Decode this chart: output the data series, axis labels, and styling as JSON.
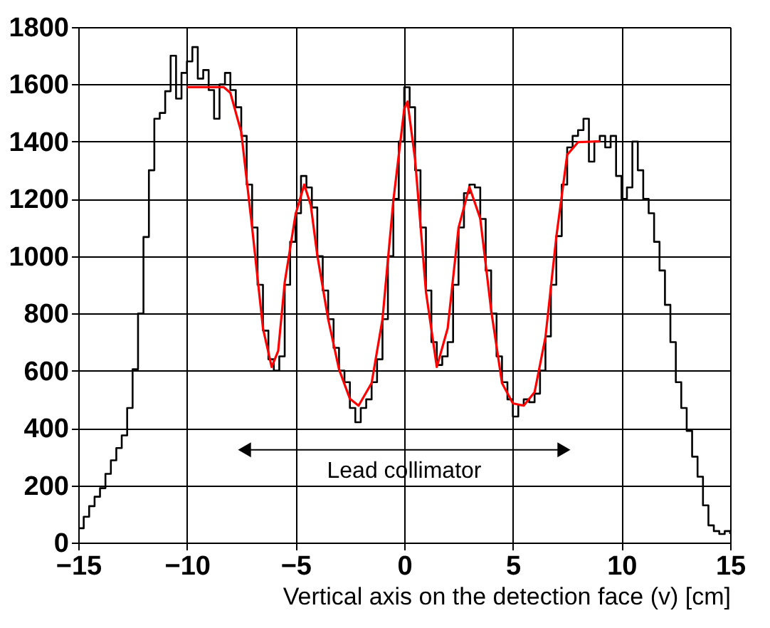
{
  "chart_data": {
    "type": "step",
    "xlabel": "Vertical axis on the detection face (v) [cm]",
    "xlim": [
      -15,
      15
    ],
    "xticks": [
      -15,
      -10,
      -5,
      0,
      5,
      10,
      15
    ],
    "ylim": [
      0,
      1800
    ],
    "yticks": [
      0,
      200,
      400,
      600,
      800,
      1000,
      1200,
      1400,
      1600,
      1800
    ],
    "grid": true,
    "annotations": [
      "Lead collimator"
    ],
    "series": [
      {
        "color": "#000000",
        "x": [
          -15,
          -14.75,
          -14.5,
          -14.25,
          -14,
          -13.75,
          -13.5,
          -13.25,
          -13,
          -12.75,
          -12.5,
          -12.25,
          -12,
          -11.75,
          -11.5,
          -11.25,
          -11,
          -10.75,
          -10.5,
          -10.25,
          -10,
          -9.75,
          -9.5,
          -9.25,
          -9,
          -8.75,
          -8.5,
          -8.25,
          -8,
          -7.75,
          -7.5,
          -7.25,
          -7,
          -6.75,
          -6.5,
          -6.25,
          -6,
          -5.75,
          -5.5,
          -5.25,
          -5,
          -4.75,
          -4.5,
          -4.25,
          -4,
          -3.75,
          -3.5,
          -3.25,
          -3,
          -2.75,
          -2.5,
          -2.25,
          -2,
          -1.75,
          -1.5,
          -1.25,
          -1,
          -0.75,
          -0.5,
          -0.25,
          0,
          0.25,
          0.5,
          0.75,
          1,
          1.25,
          1.5,
          1.75,
          2,
          2.25,
          2.5,
          2.75,
          3,
          3.25,
          3.5,
          3.75,
          4,
          4.25,
          4.5,
          4.75,
          5,
          5.25,
          5.5,
          5.75,
          6,
          6.25,
          6.5,
          6.75,
          7,
          7.25,
          7.5,
          7.75,
          8,
          8.25,
          8.5,
          8.75,
          9,
          9.25,
          9.5,
          9.75,
          10,
          10.25,
          10.5,
          10.75,
          11,
          11.25,
          11.5,
          11.75,
          12,
          12.25,
          12.5,
          12.75,
          13,
          13.25,
          13.5,
          13.75,
          14,
          14.25,
          14.5,
          14.75,
          15
        ],
        "values": [
          50,
          90,
          127,
          160,
          190,
          240,
          287,
          330,
          374,
          470,
          605,
          800,
          1067,
          1300,
          1480,
          1500,
          1576,
          1700,
          1550,
          1640,
          1680,
          1730,
          1620,
          1650,
          1580,
          1480,
          1600,
          1640,
          1580,
          1520,
          1420,
          1250,
          1100,
          900,
          740,
          640,
          600,
          650,
          900,
          1050,
          1150,
          1280,
          1240,
          1170,
          1000,
          880,
          780,
          680,
          600,
          560,
          470,
          420,
          470,
          500,
          560,
          640,
          780,
          1000,
          1200,
          1400,
          1590,
          1520,
          1300,
          1100,
          880,
          700,
          620,
          650,
          700,
          900,
          1100,
          1220,
          1250,
          1240,
          1130,
          950,
          800,
          650,
          560,
          500,
          440,
          480,
          500,
          490,
          520,
          600,
          720,
          900,
          1070,
          1250,
          1380,
          1420,
          1440,
          1480,
          1330,
          1400,
          1420,
          1380,
          1420,
          1280,
          1200,
          1240,
          1400,
          1300,
          1200,
          1150,
          1050,
          950,
          830,
          700,
          560,
          470,
          390,
          300,
          230,
          130,
          60,
          40,
          30,
          40,
          30
        ]
      },
      {
        "type": "line",
        "color": "#ff0000",
        "x": [
          -10,
          -9,
          -8.3,
          -8,
          -7.5,
          -7,
          -6.5,
          -6.1,
          -5.8,
          -5.5,
          -5,
          -4.6,
          -4.3,
          -4,
          -3.5,
          -3,
          -2.5,
          -2.1,
          -1.5,
          -1,
          -0.5,
          0,
          0.15,
          0.5,
          1,
          1.5,
          2,
          2.5,
          3,
          3.5,
          4,
          4.5,
          5,
          5.5,
          6,
          6.5,
          7,
          7.5,
          8,
          9
        ],
        "values": [
          1590,
          1590,
          1590,
          1570,
          1433,
          1100,
          748,
          613,
          669,
          908,
          1146,
          1250,
          1178,
          1003,
          780,
          605,
          502,
          478,
          557,
          780,
          1194,
          1513,
          1540,
          1338,
          876,
          613,
          748,
          1099,
          1242,
          1131,
          812,
          557,
          486,
          478,
          525,
          717,
          1067,
          1354,
          1398,
          1401
        ]
      }
    ]
  }
}
